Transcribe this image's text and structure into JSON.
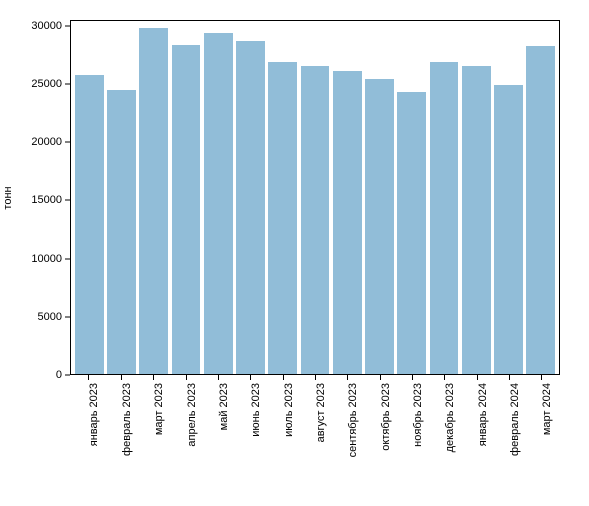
{
  "chart": {
    "type": "bar",
    "ylabel": "тонн",
    "label_fontsize": 11,
    "tick_fontsize": 11,
    "background_color": "#ffffff",
    "bar_color": "#91bdd8",
    "border_color": "#000000",
    "text_color": "#000000",
    "ylim": [
      0,
      30500
    ],
    "yticks": [
      0,
      5000,
      10000,
      15000,
      20000,
      25000,
      30000
    ],
    "bar_width": 0.88,
    "categories": [
      "январь 2023",
      "февраль 2023",
      "март 2023",
      "апрель 2023",
      "май 2023",
      "июнь 2023",
      "июль 2023",
      "август 2023",
      "сентябрь 2023",
      "октябрь 2023",
      "ноябрь 2023",
      "декабрь 2023",
      "январь 2024",
      "февраль 2024",
      "март 2024"
    ],
    "values": [
      25800,
      24500,
      29900,
      28400,
      29500,
      28800,
      27000,
      26600,
      26200,
      25500,
      24400,
      27000,
      26600,
      25000,
      28300
    ]
  }
}
